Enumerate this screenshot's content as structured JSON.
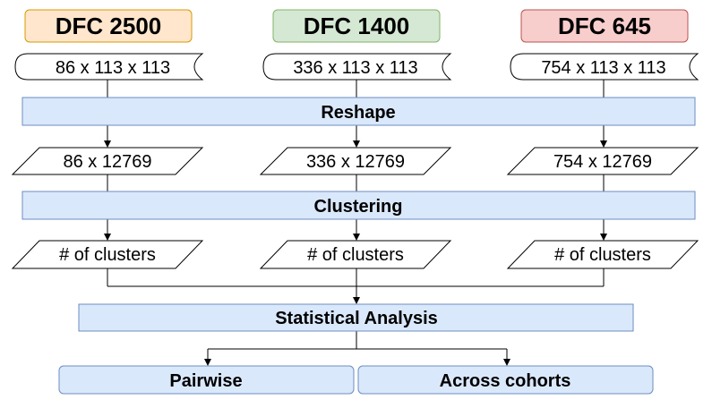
{
  "cohorts": [
    {
      "title": "DFC 2500",
      "fill": "#ffe6cc",
      "stroke": "#d79b00",
      "matrix": "86 x 113 x 113",
      "reshaped": "86 x 12769",
      "clusters": "# of clusters"
    },
    {
      "title": "DFC 1400",
      "fill": "#d5e8d4",
      "stroke": "#82b366",
      "matrix": "336 x 113 x 113",
      "reshaped": "336 x 12769",
      "clusters": "# of clusters"
    },
    {
      "title": "DFC 645",
      "fill": "#f8cecc",
      "stroke": "#b85450",
      "matrix": "754 x 113 x 113",
      "reshaped": "754 x 12769",
      "clusters": "# of clusters"
    }
  ],
  "steps": {
    "reshape": "Reshape",
    "clustering": "Clustering",
    "statistical_analysis": "Statistical Analysis",
    "pairwise": "Pairwise",
    "across_cohorts": "Across cohorts"
  },
  "colors": {
    "process_fill": "#dae8fc",
    "process_stroke": "#6c8ebf",
    "line": "#000000"
  }
}
